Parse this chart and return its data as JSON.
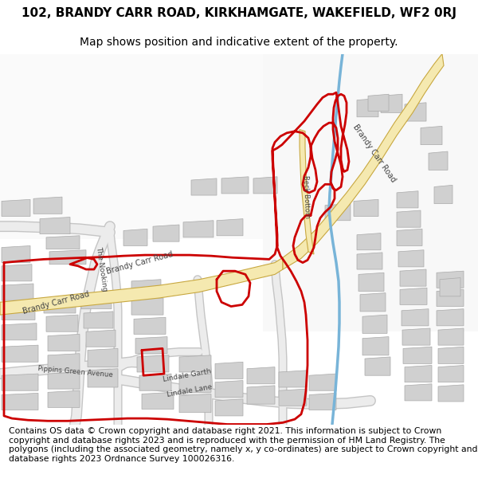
{
  "title_line1": "102, BRANDY CARR ROAD, KIRKHAMGATE, WAKEFIELD, WF2 0RJ",
  "title_line2": "Map shows position and indicative extent of the property.",
  "footer": "Contains OS data © Crown copyright and database right 2021. This information is subject to Crown copyright and database rights 2023 and is reproduced with the permission of HM Land Registry. The polygons (including the associated geometry, namely x, y co-ordinates) are subject to Crown copyright and database rights 2023 Ordnance Survey 100026316.",
  "bg_map_color": "#f2f2f2",
  "bg_page_color": "#ffffff",
  "road_fill_color": "#f5e9b0",
  "road_edge_color": "#c8a840",
  "building_color": "#d0d0d0",
  "building_edge_color": "#aaaaaa",
  "boundary_color": "#cc0000",
  "river_color": "#78b4d8",
  "label_color": "#444444",
  "title_fontsize": 11,
  "subtitle_fontsize": 10,
  "footer_fontsize": 7.8
}
